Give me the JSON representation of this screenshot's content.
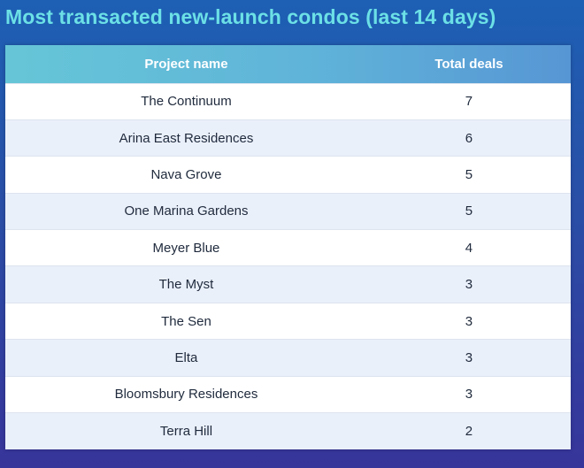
{
  "title": "Most transacted new-launch condos (last 14 days)",
  "colors": {
    "title": "#6ce0e6",
    "header_gradient_start": "#66c6d7",
    "header_gradient_end": "#5796d4",
    "background_top": "#1d60b4",
    "background_bottom": "#37349a",
    "row_alt": "#eaf0fa"
  },
  "chart_data": {
    "type": "table",
    "title": "Most transacted new-launch condos (last 14 days)",
    "columns": [
      "Project name",
      "Total deals"
    ],
    "rows": [
      {
        "project": "The Continuum",
        "deals": 7
      },
      {
        "project": "Arina East Residences",
        "deals": 6
      },
      {
        "project": "Nava Grove",
        "deals": 5
      },
      {
        "project": "One Marina Gardens",
        "deals": 5
      },
      {
        "project": "Meyer Blue",
        "deals": 4
      },
      {
        "project": "The Myst",
        "deals": 3
      },
      {
        "project": "The Sen",
        "deals": 3
      },
      {
        "project": "Elta",
        "deals": 3
      },
      {
        "project": "Bloomsbury Residences",
        "deals": 3
      },
      {
        "project": "Terra Hill",
        "deals": 2
      }
    ]
  }
}
